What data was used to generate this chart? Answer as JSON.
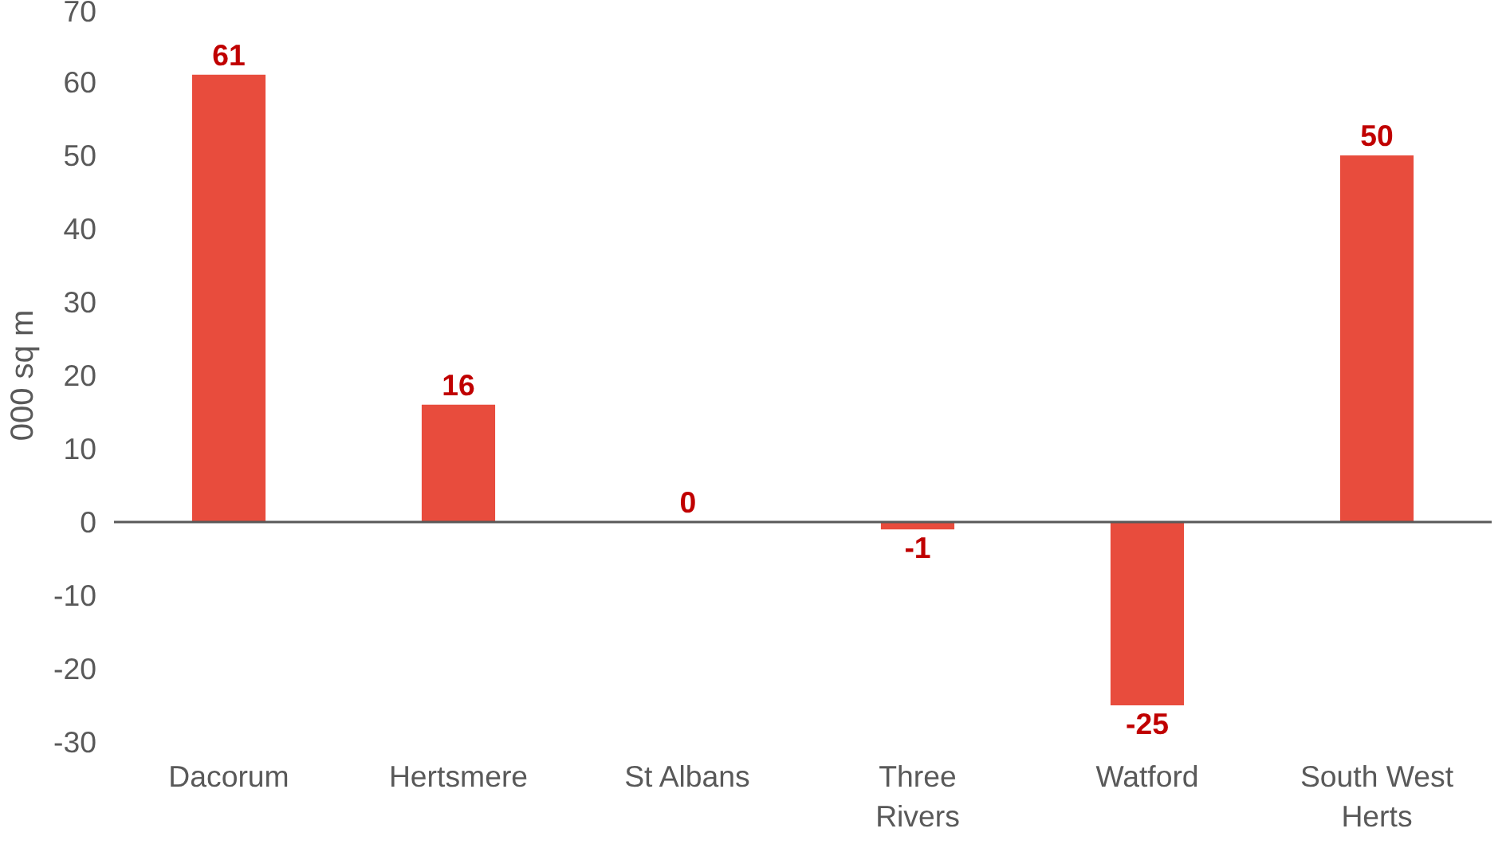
{
  "chart_data": {
    "type": "bar",
    "ylabel": "000 sq m",
    "categories": [
      "Dacorum",
      "Hertsmere",
      "St Albans",
      "Three Rivers",
      "Watford",
      "South West Herts"
    ],
    "values": [
      61,
      16,
      0,
      -1,
      -25,
      50
    ],
    "color": "#e84c3d",
    "data_labels": true,
    "ylim": [
      -30,
      70
    ],
    "yticks": [
      -30,
      -20,
      -10,
      0,
      10,
      20,
      30,
      40,
      50,
      60,
      70
    ],
    "ref_lines": [
      {
        "axis": "y",
        "value": 0,
        "color": "#595959"
      }
    ],
    "grid": false
  }
}
